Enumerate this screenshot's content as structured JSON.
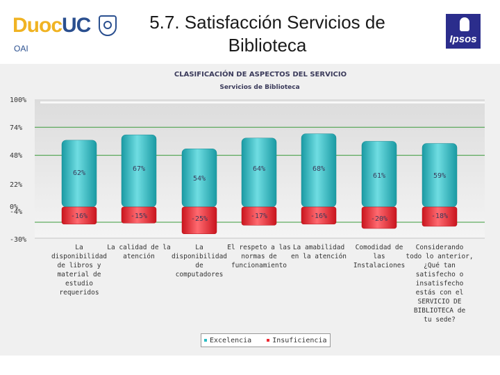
{
  "header": {
    "logo_duoc": "Duoc",
    "logo_uc": "UC",
    "oai": "OAI",
    "title_line1": "5.7. Satisfacción Servicios de",
    "title_line2": "Biblioteca",
    "ipsos": "Ipsos"
  },
  "chart_data": {
    "type": "bar",
    "title": "CLASIFICACIÓN DE ASPECTOS DEL SERVICIO",
    "subtitle": "Servicios de Biblioteca",
    "xlabel": "",
    "ylabel": "",
    "ylim": [
      -30,
      100
    ],
    "yticks": [
      100,
      74,
      48,
      22,
      0,
      -4,
      -30
    ],
    "ytick_labels": [
      "100%",
      "74%",
      "48%",
      "22%",
      "0%",
      "-4%",
      "-30%"
    ],
    "reference_lines": [
      74,
      48,
      -4
    ],
    "categories": [
      "La disponibilidad de libros y material de estudio requeridos",
      "La calidad de la atención",
      "La disponibilidad de computadores",
      "El respeto a las normas de funcionamiento",
      "La amabilidad en la atención",
      "Comodidad de las Instalaciones",
      "Considerando todo lo anterior, ¿Qué tan satisfecho o insatisfecho estás con el SERVICIO DE BIBLIOTECA de tu sede?"
    ],
    "category_lines": [
      [
        "La",
        "disponibilidad",
        "de libros y",
        "material de",
        "estudio",
        "requeridos"
      ],
      [
        "La calidad de la",
        "atención"
      ],
      [
        "La",
        "disponibilidad",
        "de",
        "computadores"
      ],
      [
        "El respeto a las",
        "normas de",
        "funcionamiento"
      ],
      [
        "La amabilidad",
        "en la atención"
      ],
      [
        "Comodidad de",
        "las",
        "Instalaciones"
      ],
      [
        "Considerando",
        "todo lo anterior,",
        "¿Qué tan",
        "satisfecho o",
        "insatisfecho",
        "estás con el",
        "SERVICIO DE",
        "BIBLIOTECA de",
        "tu sede?"
      ]
    ],
    "series": [
      {
        "name": "Excelencia",
        "color": "#2bbcc4",
        "values": [
          62,
          67,
          54,
          64,
          68,
          61,
          59
        ],
        "labels": [
          "62%",
          "67%",
          "54%",
          "64%",
          "68%",
          "61%",
          "59%"
        ]
      },
      {
        "name": "Insuficiencia",
        "color": "#ee2a34",
        "values": [
          -16,
          -15,
          -25,
          -17,
          -16,
          -20,
          -18
        ],
        "labels": [
          "-16%",
          "-15%",
          "-25%",
          "-17%",
          "-16%",
          "-20%",
          "-18%"
        ]
      }
    ],
    "legend_position": "bottom"
  }
}
